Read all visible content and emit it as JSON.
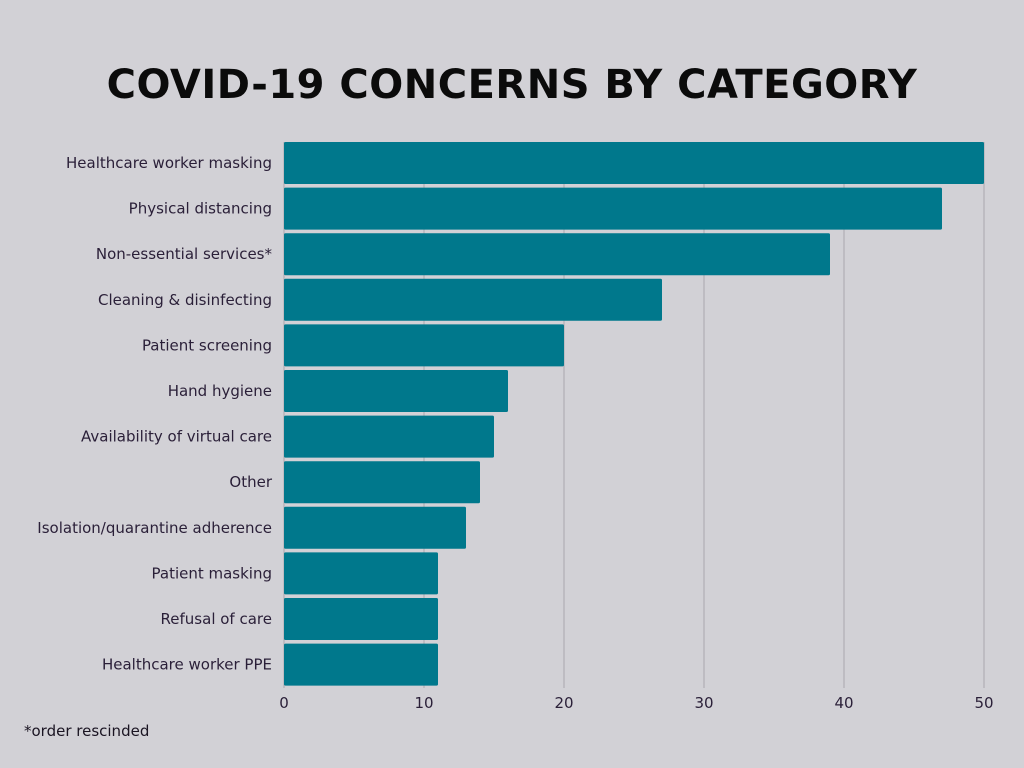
{
  "chart_data": {
    "type": "bar",
    "orientation": "horizontal",
    "title": "COVID-19 CONCERNS BY CATEGORY",
    "xlabel": "",
    "ylabel": "",
    "categories": [
      "Healthcare worker masking",
      "Physical distancing",
      "Non-essential services*",
      "Cleaning & disinfecting",
      "Patient screening",
      "Hand hygiene",
      "Availability of virtual care",
      "Other",
      "Isolation/quarantine adherence",
      "Patient masking",
      "Refusal of care",
      "Healthcare worker PPE"
    ],
    "values": [
      50,
      47,
      39,
      27,
      20,
      16,
      15,
      14,
      13,
      11,
      11,
      11
    ],
    "xlim": [
      0,
      50
    ],
    "x_ticks": [
      "0",
      "10",
      "20",
      "30",
      "40",
      "50"
    ],
    "grid": "vertical",
    "legend": "none",
    "colors": {
      "bar": "#00788c",
      "grid": "#a9a8ae",
      "background": "#d2d1d6",
      "title": "#0b0b0b",
      "label": "#2a1f38"
    }
  },
  "footnote": "*order rescinded"
}
